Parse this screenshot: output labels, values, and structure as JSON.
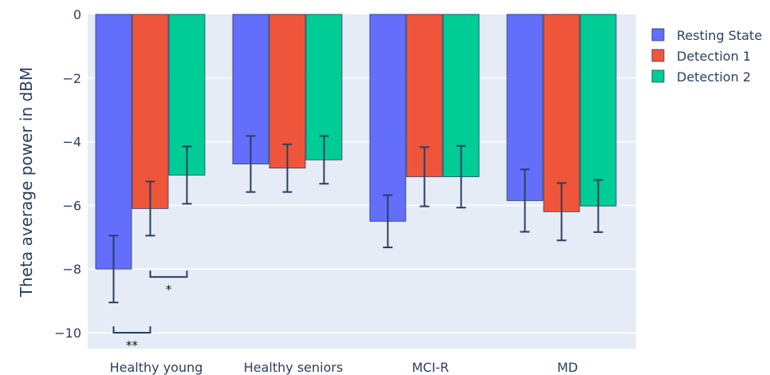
{
  "chart_data": {
    "type": "bar",
    "categories": [
      "Healthy young",
      "Healthy seniors",
      "MCI-R",
      "MD"
    ],
    "series": [
      {
        "name": "Resting State",
        "color": "#636efa",
        "values": [
          -8.0,
          -4.7,
          -6.5,
          -5.85
        ],
        "errors": [
          1.05,
          0.88,
          0.82,
          0.98
        ]
      },
      {
        "name": "Detection 1",
        "color": "#ef553b",
        "values": [
          -6.1,
          -4.83,
          -5.1,
          -6.2
        ],
        "errors": [
          0.85,
          0.75,
          0.93,
          0.9
        ]
      },
      {
        "name": "Detection 2",
        "color": "#00cc96",
        "values": [
          -5.05,
          -4.57,
          -5.1,
          -6.02
        ],
        "errors": [
          0.9,
          0.75,
          0.97,
          0.82
        ]
      }
    ],
    "ylabel": "Theta average power in dBM",
    "xlabel": "",
    "ylim": [
      -10.9,
      0
    ],
    "yticks": [
      0,
      -2,
      -4,
      -6,
      -8,
      -10
    ],
    "ytick_labels": [
      "0",
      "−2",
      "−4",
      "−6",
      "−8",
      "−10"
    ],
    "legend_position": "top-right",
    "annotations": [
      {
        "label": "**",
        "category": "Healthy young",
        "from_series": 0,
        "to_series": 1,
        "y": -10.0
      },
      {
        "label": "*",
        "category": "Healthy young",
        "from_series": 1,
        "to_series": 2,
        "y": -8.25
      }
    ]
  }
}
